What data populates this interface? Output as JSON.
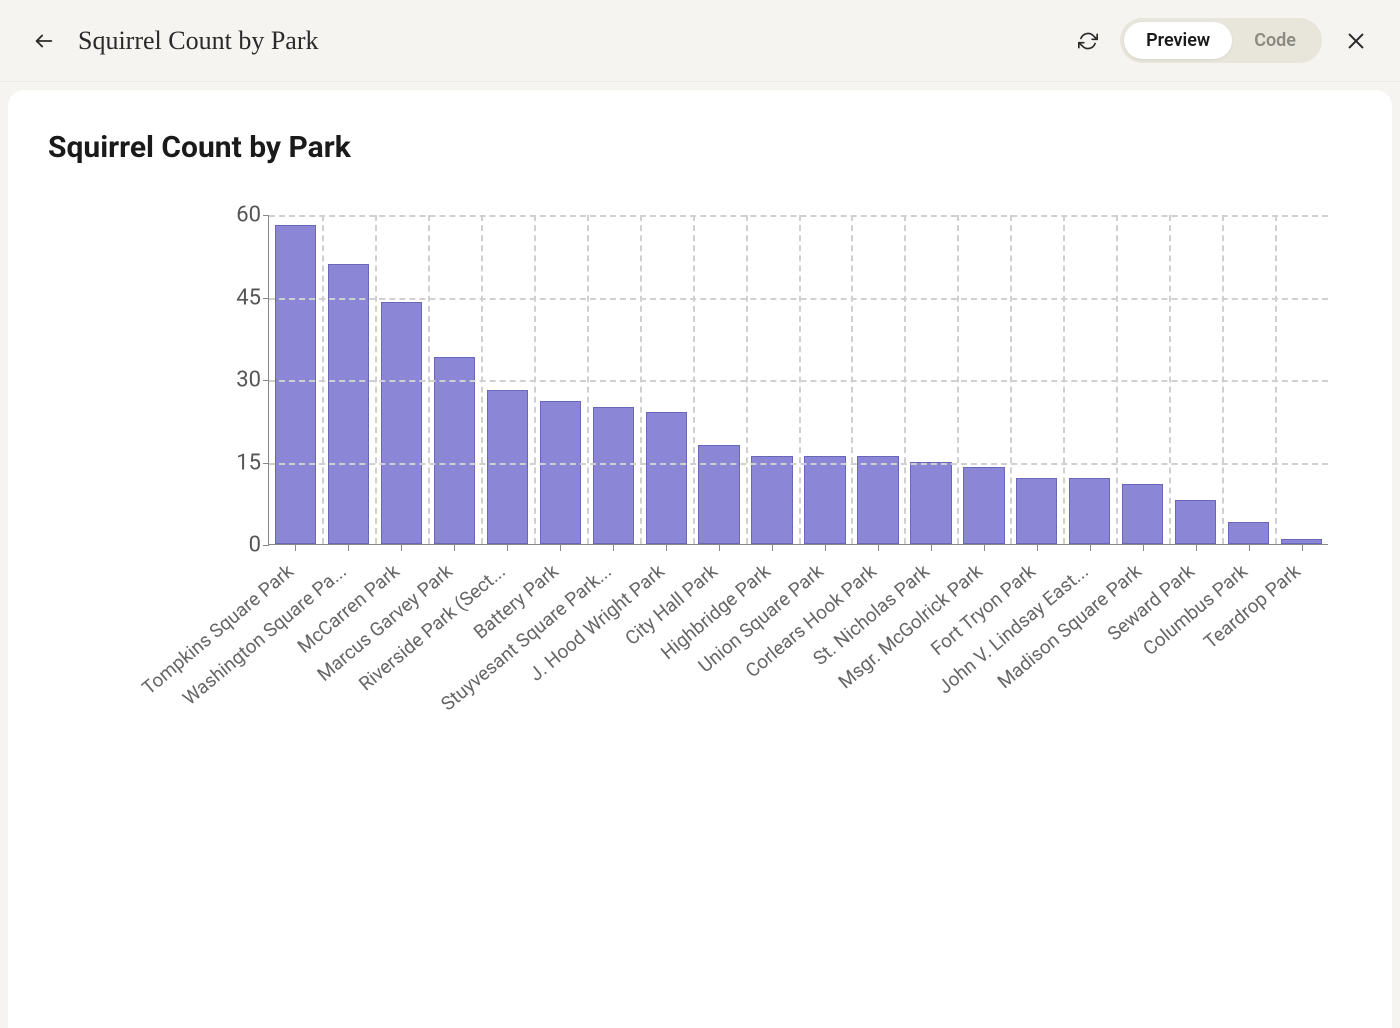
{
  "header": {
    "title": "Squirrel Count by Park",
    "toggle": {
      "preview": "Preview",
      "code": "Code",
      "active": "preview"
    }
  },
  "chart": {
    "type": "bar",
    "title": "Squirrel Count by Park",
    "title_fontsize": 30,
    "bar_color": "#8b87d6",
    "bar_border_color": "#6b67b8",
    "background_color": "#ffffff",
    "grid_color": "#d0d0d0",
    "axis_color": "#888888",
    "label_color": "#666666",
    "label_fontsize": 19,
    "ylim": [
      0,
      60
    ],
    "ytick_step": 15,
    "yticks": [
      0,
      15,
      30,
      45,
      60
    ],
    "bar_width": 0.78,
    "x_label_rotation": -40,
    "categories": [
      "Tompkins Square Park",
      "Washington Square Pa...",
      "McCarren Park",
      "Marcus Garvey Park",
      "Riverside Park (Sect...",
      "Battery Park",
      "Stuyvesant Square Park...",
      "J. Hood Wright Park",
      "City Hall Park",
      "Highbridge Park",
      "Union Square Park",
      "Corlears Hook Park",
      "St. Nicholas Park",
      "Msgr. McGolrick Park",
      "Fort Tryon Park",
      "John V. Lindsay East...",
      "Madison Square Park",
      "Seward Park",
      "Columbus Park",
      "Teardrop Park"
    ],
    "values": [
      58,
      51,
      44,
      34,
      28,
      26,
      25,
      24,
      18,
      16,
      16,
      16,
      15,
      14,
      12,
      12,
      11,
      8,
      4,
      1
    ]
  }
}
